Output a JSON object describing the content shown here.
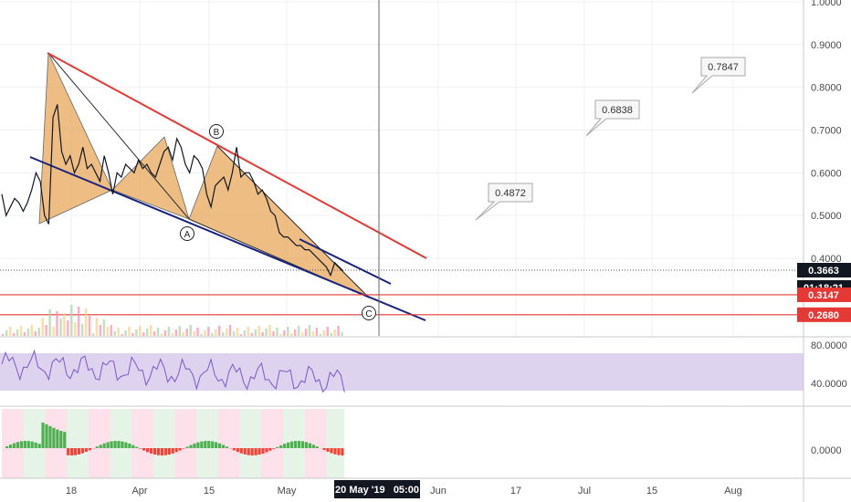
{
  "chart_data": {
    "type": "line",
    "price_axis": {
      "ticks": [
        "1.0000",
        "0.9000",
        "0.8000",
        "0.7000",
        "0.6000",
        "0.5000",
        "0.4000"
      ],
      "tick_values": [
        1.0,
        0.9,
        0.8,
        0.7,
        0.6,
        0.5,
        0.4
      ]
    },
    "time_axis": {
      "ticks": [
        "18",
        "Apr",
        "15",
        "May",
        "Jun",
        "17",
        "Jul",
        "15",
        "Aug"
      ],
      "crosshair_label": "20 May '19   05:00"
    },
    "price_series": {
      "x": [
        0,
        2,
        4,
        6,
        8,
        10,
        12,
        14,
        16,
        18,
        20,
        22,
        24,
        26,
        28,
        30,
        32,
        34,
        36,
        38,
        40,
        42,
        44,
        46,
        48,
        50,
        52,
        54,
        56,
        58,
        60,
        62,
        64,
        66,
        68,
        70,
        72,
        74,
        76,
        78,
        80,
        82,
        84,
        86,
        88,
        90,
        92,
        94,
        96,
        98,
        100,
        102,
        104,
        106,
        108,
        110,
        112,
        114,
        116,
        118,
        120,
        122,
        124,
        126,
        128,
        130,
        132,
        134,
        136,
        138,
        140,
        142,
        144,
        146,
        148,
        150,
        152,
        154,
        156,
        158,
        160
      ],
      "y": [
        0.55,
        0.5,
        0.52,
        0.54,
        0.53,
        0.51,
        0.53,
        0.56,
        0.6,
        0.58,
        0.5,
        0.48,
        0.73,
        0.76,
        0.65,
        0.62,
        0.64,
        0.6,
        0.62,
        0.66,
        0.61,
        0.62,
        0.6,
        0.58,
        0.64,
        0.6,
        0.55,
        0.6,
        0.59,
        0.62,
        0.61,
        0.6,
        0.63,
        0.61,
        0.62,
        0.6,
        0.59,
        0.62,
        0.65,
        0.66,
        0.63,
        0.68,
        0.66,
        0.62,
        0.6,
        0.64,
        0.63,
        0.61,
        0.55,
        0.52,
        0.57,
        0.58,
        0.59,
        0.56,
        0.6,
        0.66,
        0.59,
        0.6,
        0.6,
        0.58,
        0.55,
        0.56,
        0.54,
        0.51,
        0.5,
        0.46,
        0.45,
        0.45,
        0.44,
        0.43,
        0.43,
        0.42,
        0.42,
        0.41,
        0.4,
        0.39,
        0.38,
        0.36,
        0.39,
        0.38,
        0.37
      ]
    },
    "last_price": "0.3663",
    "countdown": "01:18:21",
    "horizontal_levels": [
      {
        "label": "0.3147",
        "value": 0.3147
      },
      {
        "label": "0.2680",
        "value": 0.268
      }
    ],
    "callouts": [
      {
        "label": "0.4872",
        "value": 0.4872
      },
      {
        "label": "0.6838",
        "value": 0.6838
      },
      {
        "label": "0.7847",
        "value": 0.7847
      }
    ],
    "wave_labels": [
      "A",
      "B",
      "C"
    ],
    "rsi": {
      "ticks": [
        "80.0000",
        "40.0000"
      ],
      "tick_values": [
        80,
        40
      ],
      "band": [
        30,
        70
      ]
    },
    "macd": {
      "ticks": [
        "0.0000"
      ],
      "tick_values": [
        0
      ]
    },
    "colors": {
      "price": "#131722",
      "resistance": "#e53935",
      "support": "#1a237e",
      "harmonic_fill": "#e8a85a",
      "level": "#e53935",
      "rsi_line": "#7e57c2",
      "rsi_band": "#d1c4e9",
      "macd_pos": "#4caf50",
      "macd_neg": "#f44336",
      "tag_dark": "#131722",
      "tag_red": "#e53935"
    }
  }
}
